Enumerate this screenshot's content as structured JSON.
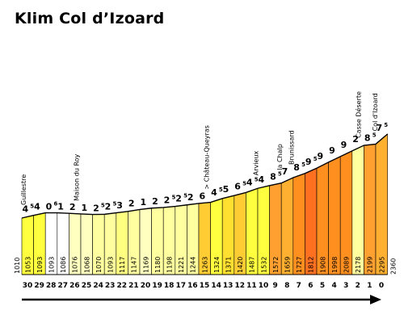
{
  "title": "Klim Col d’Izoard",
  "chart_data": {
    "type": "bar",
    "unit_note": "x = km remaining to summit (1 km segments); elevations in m; gradients in %",
    "x_ticks": [
      "30",
      "29",
      "28",
      "27",
      "26",
      "25",
      "24",
      "23",
      "22",
      "21",
      "20",
      "19",
      "18",
      "17",
      "16",
      "15",
      "14",
      "13",
      "12",
      "11",
      "10",
      "9",
      "8",
      "7",
      "6",
      "5",
      "4",
      "3",
      "2",
      "1",
      "0"
    ],
    "start_elevation": "1010",
    "segments": [
      {
        "elev": "1053",
        "grade": "4",
        "sup": "5",
        "color": "#ffff40"
      },
      {
        "elev": "1093",
        "grade": "4",
        "sup": "",
        "color": "#ffff40"
      },
      {
        "elev": "1093",
        "grade": "0",
        "sup": "6",
        "color": "#ffffff"
      },
      {
        "elev": "1086",
        "grade": "1",
        "sup": "",
        "color": "#ffffff"
      },
      {
        "elev": "1076",
        "grade": "2",
        "sup": "",
        "color": "#ffffc0"
      },
      {
        "elev": "1068",
        "grade": "1",
        "sup": "",
        "color": "#ffffc0"
      },
      {
        "elev": "1070",
        "grade": "2",
        "sup": "5",
        "color": "#ffffa0"
      },
      {
        "elev": "1093",
        "grade": "2",
        "sup": "5",
        "color": "#ffffa0"
      },
      {
        "elev": "1117",
        "grade": "3",
        "sup": "",
        "color": "#ffff80"
      },
      {
        "elev": "1147",
        "grade": "2",
        "sup": "",
        "color": "#ffffa0"
      },
      {
        "elev": "1169",
        "grade": "1",
        "sup": "",
        "color": "#ffffc0"
      },
      {
        "elev": "1180",
        "grade": "2",
        "sup": "",
        "color": "#ffffa0"
      },
      {
        "elev": "1198",
        "grade": "2",
        "sup": "5",
        "color": "#ffffa0"
      },
      {
        "elev": "1221",
        "grade": "2",
        "sup": "5",
        "color": "#ffffa0"
      },
      {
        "elev": "1244",
        "grade": "2",
        "sup": "",
        "color": "#ffffa0"
      },
      {
        "elev": "1263",
        "grade": "6",
        "sup": "",
        "color": "#ffcc33"
      },
      {
        "elev": "1324",
        "grade": "4",
        "sup": "5",
        "color": "#ffff40"
      },
      {
        "elev": "1371",
        "grade": "5",
        "sup": "",
        "color": "#ffe030"
      },
      {
        "elev": "1420",
        "grade": "6",
        "sup": "5",
        "color": "#ffcc33"
      },
      {
        "elev": "1487",
        "grade": "4",
        "sup": "5",
        "color": "#ffff40"
      },
      {
        "elev": "1532",
        "grade": "4",
        "sup": "",
        "color": "#ffff40"
      },
      {
        "elev": "1572",
        "grade": "8",
        "sup": "5",
        "color": "#ffa030"
      },
      {
        "elev": "1659",
        "grade": "7",
        "sup": "",
        "color": "#ffb030"
      },
      {
        "elev": "1727",
        "grade": "8",
        "sup": "5",
        "color": "#ff9020"
      },
      {
        "elev": "1812",
        "grade": "9",
        "sup": "5",
        "color": "#ff7020"
      },
      {
        "elev": "1908",
        "grade": "9",
        "sup": "",
        "color": "#ff9020"
      },
      {
        "elev": "1998",
        "grade": "9",
        "sup": "",
        "color": "#ff9020"
      },
      {
        "elev": "2089",
        "grade": "9",
        "sup": "",
        "color": "#ff9020"
      },
      {
        "elev": "2178",
        "grade": "2",
        "sup": "",
        "color": "#ffffa0"
      },
      {
        "elev": "2199",
        "grade": "8",
        "sup": "5",
        "color": "#ffa030"
      },
      {
        "elev": "2295",
        "grade": "7",
        "sup": "5",
        "color": "#ffb030"
      }
    ],
    "end_elevation": "2360",
    "places": [
      {
        "name": "Guillestre",
        "km": 30
      },
      {
        "name": "Maison du Roy",
        "km": 25.5
      },
      {
        "name": "> Château-Queyras",
        "km": 14.5
      },
      {
        "name": "Arvieux",
        "km": 10.3
      },
      {
        "name": "la Chalp",
        "km": 8.3
      },
      {
        "name": "Brunissard",
        "km": 7.3
      },
      {
        "name": "Casse Déserte",
        "km": 1.6
      },
      {
        "name": "Col d'Izoard",
        "km": 0.2
      }
    ],
    "accent_color": "#000000"
  }
}
